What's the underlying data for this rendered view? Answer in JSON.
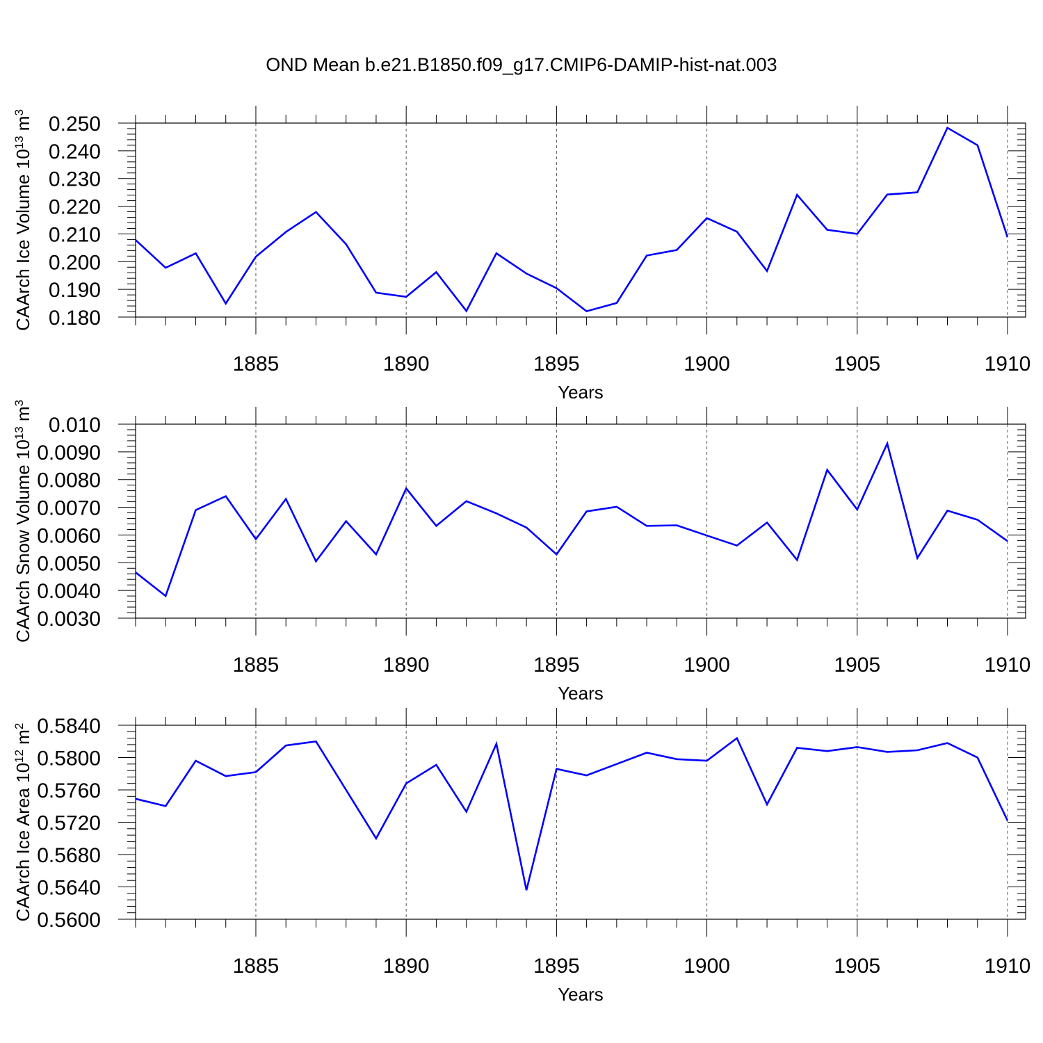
{
  "title": "OND Mean b.e21.B1850.f09_g17.CMIP6-DAMIP-hist-nat.003",
  "chart_data": [
    {
      "type": "line",
      "title": "",
      "xlabel": "Years",
      "ylabel": {
        "main": "CAArch Ice Volume 10",
        "exp": "13",
        "unit": " m",
        "unit_exp": "3"
      },
      "xlim": [
        1881,
        1910
      ],
      "ylim": [
        0.18,
        0.25
      ],
      "xticks": [
        1885,
        1890,
        1895,
        1900,
        1905,
        1910
      ],
      "yticks": [
        "0.180",
        "0.190",
        "0.200",
        "0.210",
        "0.220",
        "0.230",
        "0.240",
        "0.250"
      ],
      "grid": "vertical dashed at major x ticks",
      "line_color": "#0000ff",
      "series": [
        {
          "x": [
            1881,
            1882,
            1883,
            1884,
            1885,
            1886,
            1887,
            1888,
            1889,
            1890,
            1891,
            1892,
            1893,
            1894,
            1895,
            1896,
            1897,
            1898,
            1899,
            1900,
            1901,
            1902,
            1903,
            1904,
            1905,
            1906,
            1907,
            1908,
            1909,
            1910
          ],
          "values": [
            0.2078,
            0.1978,
            0.203,
            0.1849,
            0.2018,
            0.2107,
            0.2179,
            0.2063,
            0.1888,
            0.1873,
            0.1962,
            0.1822,
            0.203,
            0.1957,
            0.1904,
            0.1821,
            0.1851,
            0.2022,
            0.2042,
            0.2157,
            0.2108,
            0.1966,
            0.2241,
            0.2115,
            0.21,
            0.2242,
            0.225,
            0.2483,
            0.242,
            0.2088
          ]
        }
      ]
    },
    {
      "type": "line",
      "title": "",
      "xlabel": "Years",
      "ylabel": {
        "main": "CAArch Snow Volume 10",
        "exp": "13",
        "unit": " m",
        "unit_exp": "3"
      },
      "xlim": [
        1881,
        1910
      ],
      "ylim": [
        0.003,
        0.01
      ],
      "xticks": [
        1885,
        1890,
        1895,
        1900,
        1905,
        1910
      ],
      "yticks": [
        "0.0030",
        "0.0040",
        "0.0050",
        "0.0060",
        "0.0070",
        "0.0080",
        "0.0090",
        "0.010"
      ],
      "grid": "vertical dashed at major x ticks",
      "line_color": "#0000ff",
      "series": [
        {
          "x": [
            1881,
            1882,
            1883,
            1884,
            1885,
            1886,
            1887,
            1888,
            1889,
            1890,
            1891,
            1892,
            1893,
            1894,
            1895,
            1896,
            1897,
            1898,
            1899,
            1900,
            1901,
            1902,
            1903,
            1904,
            1905,
            1906,
            1907,
            1908,
            1909,
            1910
          ],
          "values": [
            0.00465,
            0.0038,
            0.0069,
            0.0074,
            0.00585,
            0.0073,
            0.00505,
            0.0065,
            0.0053,
            0.00768,
            0.00633,
            0.00722,
            0.00678,
            0.00627,
            0.0053,
            0.00685,
            0.00702,
            0.00633,
            0.00635,
            0.00598,
            0.00562,
            0.00645,
            0.0051,
            0.00835,
            0.00692,
            0.0093,
            0.00517,
            0.00688,
            0.00655,
            0.00578
          ]
        }
      ]
    },
    {
      "type": "line",
      "title": "",
      "xlabel": "Years",
      "ylabel": {
        "main": "CAArch Ice Area 10",
        "exp": "12",
        "unit": " m",
        "unit_exp": "2"
      },
      "xlim": [
        1881,
        1910
      ],
      "ylim": [
        0.56,
        0.584
      ],
      "xticks": [
        1885,
        1890,
        1895,
        1900,
        1905,
        1910
      ],
      "yticks": [
        "0.5600",
        "0.5640",
        "0.5680",
        "0.5720",
        "0.5760",
        "0.5800",
        "0.5840"
      ],
      "grid": "vertical dashed at major x ticks",
      "line_color": "#0000ff",
      "series": [
        {
          "x": [
            1881,
            1882,
            1883,
            1884,
            1885,
            1886,
            1887,
            1888,
            1889,
            1890,
            1891,
            1892,
            1893,
            1894,
            1895,
            1896,
            1897,
            1898,
            1899,
            1900,
            1901,
            1902,
            1903,
            1904,
            1905,
            1906,
            1907,
            1908,
            1909,
            1910
          ],
          "values": [
            0.5749,
            0.574,
            0.5796,
            0.5777,
            0.5782,
            0.5815,
            0.582,
            0.576,
            0.57,
            0.5768,
            0.5791,
            0.5733,
            0.5817,
            0.5636,
            0.5786,
            0.5778,
            0.5792,
            0.5806,
            0.5798,
            0.5796,
            0.5824,
            0.5742,
            0.5812,
            0.5808,
            0.5813,
            0.5807,
            0.5809,
            0.5818,
            0.58,
            0.5722
          ]
        }
      ]
    }
  ]
}
